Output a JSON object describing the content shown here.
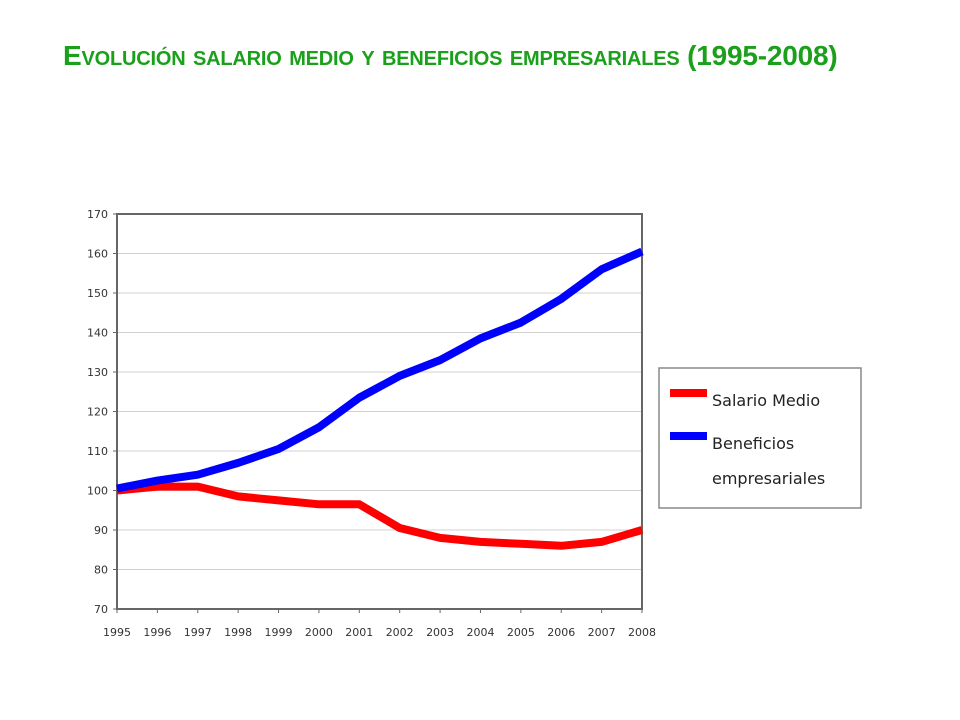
{
  "title": "Evolución salario medio y beneficios empresariales (1995-2008)",
  "chart_data": {
    "type": "line",
    "title": "",
    "xlabel": "",
    "ylabel": "",
    "x": [
      "1995",
      "1996",
      "1997",
      "1998",
      "1999",
      "2000",
      "2001",
      "2002",
      "2003",
      "2004",
      "2005",
      "2006",
      "2007",
      "2008"
    ],
    "ylim": [
      70,
      170
    ],
    "yticks": [
      "70",
      "80",
      "90",
      "100",
      "110",
      "120",
      "130",
      "140",
      "150",
      "160",
      "170"
    ],
    "grid": true,
    "legend_position": "right",
    "series": [
      {
        "name": "Salario Medio",
        "color": "#ff0000",
        "values": [
          100,
          101,
          101,
          98.5,
          97.5,
          96.5,
          96.5,
          90.5,
          88,
          87,
          86.5,
          86,
          87,
          90
        ]
      },
      {
        "name": "Beneficios empresariales",
        "name_lines": [
          "Beneficios",
          "empresariales"
        ],
        "color": "#0000ff",
        "values": [
          100.5,
          102.5,
          104,
          107,
          110.5,
          116,
          123.5,
          129,
          133,
          138.5,
          142.5,
          148.5,
          156,
          160.5
        ]
      }
    ]
  }
}
